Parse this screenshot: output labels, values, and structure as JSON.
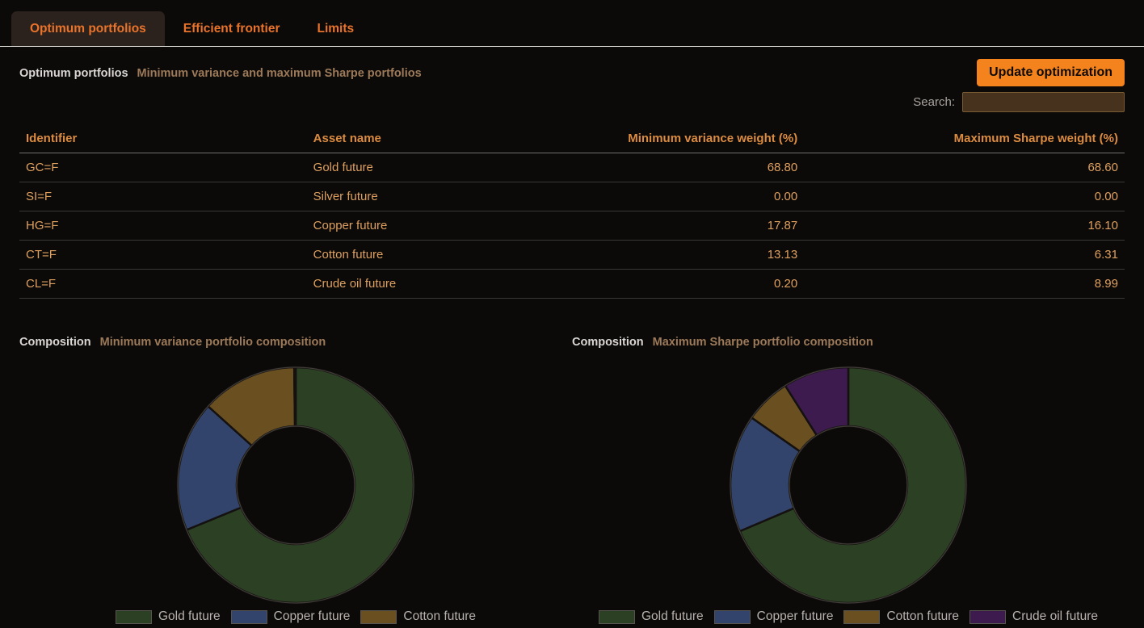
{
  "tabs": [
    {
      "label": "Optimum portfolios",
      "active": true
    },
    {
      "label": "Efficient frontier",
      "active": false
    },
    {
      "label": "Limits",
      "active": false
    }
  ],
  "header": {
    "title": "Optimum portfolios",
    "subtitle": "Minimum variance and maximum Sharpe portfolios",
    "update_button": "Update optimization"
  },
  "search": {
    "label": "Search:",
    "value": ""
  },
  "table": {
    "columns": [
      "Identifier",
      "Asset name",
      "Minimum variance weight (%)",
      "Maximum Sharpe weight (%)"
    ],
    "numeric_columns": [
      2,
      3
    ],
    "rows": [
      [
        "GC=F",
        "Gold future",
        "68.80",
        "68.60"
      ],
      [
        "SI=F",
        "Silver future",
        "0.00",
        "0.00"
      ],
      [
        "HG=F",
        "Copper future",
        "17.87",
        "16.10"
      ],
      [
        "CT=F",
        "Cotton future",
        "13.13",
        "6.31"
      ],
      [
        "CL=F",
        "Crude oil future",
        "0.20",
        "8.99"
      ]
    ]
  },
  "chart_data": [
    {
      "type": "pie",
      "title": "Composition",
      "subtitle": "Minimum variance portfolio composition",
      "hole": 0.5,
      "labels": [
        "Gold future",
        "Copper future",
        "Cotton future",
        "Crude oil future"
      ],
      "values": [
        68.8,
        17.87,
        13.13,
        0.2
      ],
      "colors": [
        "#2c4024",
        "#32446b",
        "#6a5020",
        "#3d1b4e"
      ],
      "legend_labels": [
        "Gold future",
        "Copper future",
        "Cotton future"
      ],
      "legend_position": "bottom"
    },
    {
      "type": "pie",
      "title": "Composition",
      "subtitle": "Maximum Sharpe portfolio composition",
      "hole": 0.5,
      "labels": [
        "Gold future",
        "Copper future",
        "Cotton future",
        "Crude oil future"
      ],
      "values": [
        68.6,
        16.1,
        6.31,
        8.99
      ],
      "colors": [
        "#2c4024",
        "#32446b",
        "#6a5020",
        "#3d1b4e"
      ],
      "legend_labels": [
        "Gold future",
        "Copper future",
        "Cotton future",
        "Crude oil future"
      ],
      "legend_position": "bottom"
    }
  ],
  "colors": {
    "background": "#0c0a09",
    "accent_orange": "#e9732a",
    "button_orange": "#f5831d",
    "table_header_text": "#dc8c40",
    "table_cell_text": "#dea05f",
    "subtitle_brown": "#9c7a59",
    "search_input_bg": "#46321d"
  }
}
